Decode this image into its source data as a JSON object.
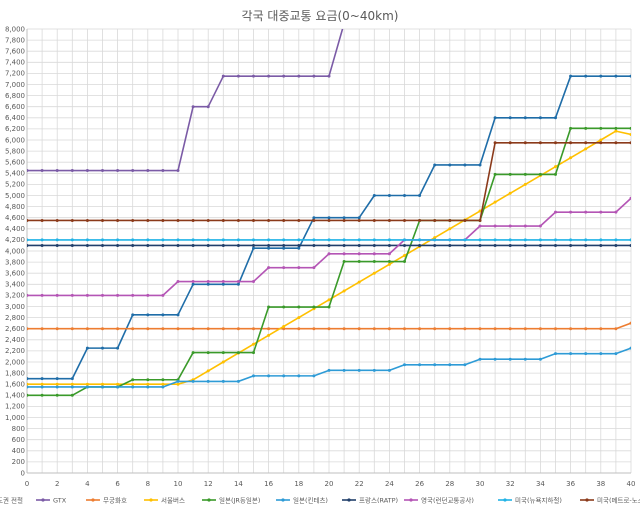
{
  "chart_data": {
    "type": "line",
    "title": "각국 대중교통 요금(0~40km)",
    "xlabel": "",
    "ylabel": "",
    "xlim": [
      0,
      40
    ],
    "ylim": [
      0,
      8000
    ],
    "x_ticks": [
      0,
      2,
      4,
      6,
      8,
      10,
      12,
      14,
      16,
      18,
      20,
      22,
      24,
      26,
      28,
      30,
      32,
      34,
      36,
      38,
      40
    ],
    "y_ticks": [
      0,
      200,
      400,
      600,
      800,
      1000,
      1200,
      1400,
      1600,
      1800,
      2000,
      2200,
      2400,
      2600,
      2800,
      3000,
      3200,
      3400,
      3600,
      3800,
      4000,
      4200,
      4400,
      4600,
      4800,
      5000,
      5200,
      5400,
      5600,
      5800,
      6000,
      6200,
      6400,
      6600,
      6800,
      7000,
      7200,
      7400,
      7600,
      7800,
      8000
    ],
    "y_tick_labels": [
      "0",
      "200",
      "400",
      "600",
      "800",
      "1,000",
      "1,200",
      "1,400",
      "1,600",
      "1,800",
      "2,000",
      "2,200",
      "2,400",
      "2,600",
      "2,800",
      "3,000",
      "3,200",
      "3,400",
      "3,600",
      "3,800",
      "4,000",
      "4,200",
      "4,400",
      "4,600",
      "4,800",
      "5,000",
      "5,200",
      "5,400",
      "5,600",
      "5,800",
      "6,000",
      "6,200",
      "6,400",
      "6,600",
      "6,800",
      "7,000",
      "7,200",
      "7,400",
      "7,600",
      "7,800",
      "8,000"
    ],
    "grid": true,
    "legend_position": "bottom",
    "x": [
      0,
      1,
      2,
      3,
      4,
      5,
      6,
      7,
      8,
      9,
      10,
      11,
      12,
      13,
      14,
      15,
      16,
      17,
      18,
      19,
      20,
      21,
      22,
      23,
      24,
      25,
      26,
      27,
      28,
      29,
      30,
      31,
      32,
      33,
      34,
      35,
      36,
      37,
      38,
      39,
      40
    ],
    "series": [
      {
        "name": "수도권 전철",
        "color": "#1F6DA8",
        "values": [
          1700,
          1700,
          1700,
          1700,
          2250,
          2250,
          2250,
          2850,
          2850,
          2850,
          2850,
          3400,
          3400,
          3400,
          3400,
          4050,
          4050,
          4050,
          4050,
          4600,
          4600,
          4600,
          4600,
          5000,
          5000,
          5000,
          5000,
          5550,
          5550,
          5550,
          5550,
          6400,
          6400,
          6400,
          6400,
          6400,
          7150,
          7150,
          7150,
          7150,
          7150
        ]
      },
      {
        "name": "GTX",
        "color": "#7B5BA6",
        "values": [
          5450,
          5450,
          5450,
          5450,
          5450,
          5450,
          5450,
          5450,
          5450,
          5450,
          5450,
          6600,
          6600,
          7150,
          7150,
          7150,
          7150,
          7150,
          7150,
          7150,
          7150,
          8100,
          8100,
          8100,
          8100,
          8100,
          8100,
          8100,
          8100,
          8100,
          8100,
          8100,
          8100,
          8100,
          8100,
          8100,
          8100,
          8100,
          8100,
          8100,
          8100
        ]
      },
      {
        "name": "무궁화호",
        "color": "#ED7D31",
        "values": [
          2600,
          2600,
          2600,
          2600,
          2600,
          2600,
          2600,
          2600,
          2600,
          2600,
          2600,
          2600,
          2600,
          2600,
          2600,
          2600,
          2600,
          2600,
          2600,
          2600,
          2600,
          2600,
          2600,
          2600,
          2600,
          2600,
          2600,
          2600,
          2600,
          2600,
          2600,
          2600,
          2600,
          2600,
          2600,
          2600,
          2600,
          2600,
          2600,
          2600,
          2700
        ]
      },
      {
        "name": "서울버스",
        "color": "#FFC000",
        "values": [
          1600,
          1600,
          1600,
          1600,
          1600,
          1600,
          1600,
          1600,
          1600,
          1600,
          1600,
          1680,
          1840,
          2000,
          2160,
          2320,
          2480,
          2640,
          2800,
          2960,
          3120,
          3280,
          3440,
          3600,
          3760,
          3920,
          4080,
          4240,
          4400,
          4560,
          4720,
          4880,
          5040,
          5200,
          5360,
          5520,
          5680,
          5840,
          6000,
          6160,
          6100
        ]
      },
      {
        "name": "일본(JR동일본)",
        "color": "#3A9A2A",
        "values": [
          1400,
          1400,
          1400,
          1400,
          1550,
          1550,
          1550,
          1680,
          1680,
          1680,
          1680,
          2170,
          2170,
          2170,
          2170,
          2170,
          2990,
          2990,
          2990,
          2990,
          2990,
          3810,
          3810,
          3810,
          3810,
          3810,
          4550,
          4550,
          4550,
          4550,
          4550,
          5380,
          5380,
          5380,
          5380,
          5380,
          6210,
          6210,
          6210,
          6210,
          6210
        ]
      },
      {
        "name": "일본(킨테츠)",
        "color": "#2E9BD6",
        "values": [
          1550,
          1550,
          1550,
          1550,
          1550,
          1550,
          1550,
          1550,
          1550,
          1550,
          1650,
          1650,
          1650,
          1650,
          1650,
          1750,
          1750,
          1750,
          1750,
          1750,
          1850,
          1850,
          1850,
          1850,
          1850,
          1950,
          1950,
          1950,
          1950,
          1950,
          2050,
          2050,
          2050,
          2050,
          2050,
          2150,
          2150,
          2150,
          2150,
          2150,
          2250
        ]
      },
      {
        "name": "프랑스(RATP)",
        "color": "#213F6B",
        "values": [
          4100,
          4100,
          4100,
          4100,
          4100,
          4100,
          4100,
          4100,
          4100,
          4100,
          4100,
          4100,
          4100,
          4100,
          4100,
          4100,
          4100,
          4100,
          4100,
          4100,
          4100,
          4100,
          4100,
          4100,
          4100,
          4100,
          4100,
          4100,
          4100,
          4100,
          4100,
          4100,
          4100,
          4100,
          4100,
          4100,
          4100,
          4100,
          4100,
          4100,
          4100
        ]
      },
      {
        "name": "영국(런던교통공사)",
        "color": "#B455B5",
        "values": [
          3200,
          3200,
          3200,
          3200,
          3200,
          3200,
          3200,
          3200,
          3200,
          3200,
          3450,
          3450,
          3450,
          3450,
          3450,
          3450,
          3700,
          3700,
          3700,
          3700,
          3950,
          3950,
          3950,
          3950,
          3950,
          4200,
          4200,
          4200,
          4200,
          4200,
          4450,
          4450,
          4450,
          4450,
          4450,
          4700,
          4700,
          4700,
          4700,
          4700,
          4950
        ]
      },
      {
        "name": "미국(뉴욕지하철)",
        "color": "#21B3E6",
        "values": [
          4200,
          4200,
          4200,
          4200,
          4200,
          4200,
          4200,
          4200,
          4200,
          4200,
          4200,
          4200,
          4200,
          4200,
          4200,
          4200,
          4200,
          4200,
          4200,
          4200,
          4200,
          4200,
          4200,
          4200,
          4200,
          4200,
          4200,
          4200,
          4200,
          4200,
          4200,
          4200,
          4200,
          4200,
          4200,
          4200,
          4200,
          4200,
          4200,
          4200,
          4200
        ]
      },
      {
        "name": "미국(메트로-노스)",
        "color": "#8B3A1A",
        "values": [
          4550,
          4550,
          4550,
          4550,
          4550,
          4550,
          4550,
          4550,
          4550,
          4550,
          4550,
          4550,
          4550,
          4550,
          4550,
          4550,
          4550,
          4550,
          4550,
          4550,
          4550,
          4550,
          4550,
          4550,
          4550,
          4550,
          4550,
          4550,
          4550,
          4550,
          4550,
          5950,
          5950,
          5950,
          5950,
          5950,
          5950,
          5950,
          5950,
          5950,
          5950
        ]
      }
    ]
  }
}
